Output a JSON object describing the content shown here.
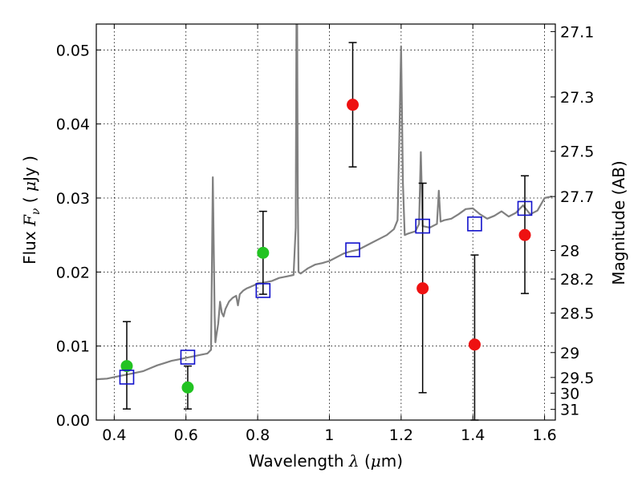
{
  "chart_data": {
    "type": "scatter",
    "xlabel": {
      "prefix": "Wavelength",
      "symbol": "λ",
      "unit_open": "(",
      "unit_mu": "μ",
      "unit_rest": "m)"
    },
    "ylabel": {
      "prefix": "Flux",
      "symbol": "F",
      "sub": "ν",
      "unit_open": "(",
      "unit_mu": "μ",
      "unit_rest": "Jy )"
    },
    "y2label": "Magnitude (AB)",
    "xlim": [
      0.35,
      1.63
    ],
    "ylim": [
      0.0,
      0.0535
    ],
    "x_ticks": [
      "0.4",
      "0.6",
      "0.8",
      "1",
      "1.2",
      "1.4",
      "1.6"
    ],
    "y_ticks": [
      "0.00",
      "0.01",
      "0.02",
      "0.03",
      "0.04",
      "0.05"
    ],
    "y2_ticks": [
      "27.1",
      "27.3",
      "27.5",
      "27.7",
      "28",
      "28.2",
      "28.5",
      "29",
      "29.5",
      "30",
      "31"
    ],
    "grid": true,
    "series": [
      {
        "marker": "circle",
        "color": "#22c322",
        "points": [
          {
            "x": 0.435,
            "y": 0.0073,
            "err_low": 0.0015,
            "err_high": 0.0133
          },
          {
            "x": 0.605,
            "y": 0.0044,
            "err_low": 0.0015,
            "err_high": 0.0073
          },
          {
            "x": 0.815,
            "y": 0.0226,
            "err_low": 0.017,
            "err_high": 0.0282
          }
        ]
      },
      {
        "marker": "circle",
        "color": "#ee1111",
        "points": [
          {
            "x": 1.065,
            "y": 0.0426,
            "err_low": 0.0342,
            "err_high": 0.051
          },
          {
            "x": 1.26,
            "y": 0.0178,
            "err_low": 0.0037,
            "err_high": 0.032
          },
          {
            "x": 1.405,
            "y": 0.0102,
            "err_low": 0.0,
            "err_high": 0.0223
          },
          {
            "x": 1.545,
            "y": 0.025,
            "err_low": 0.0171,
            "err_high": 0.033
          }
        ]
      },
      {
        "marker": "open-square",
        "color": "#1111cc",
        "points": [
          {
            "x": 0.435,
            "y": 0.0058
          },
          {
            "x": 0.605,
            "y": 0.0085
          },
          {
            "x": 0.815,
            "y": 0.0175
          },
          {
            "x": 1.065,
            "y": 0.023
          },
          {
            "x": 1.26,
            "y": 0.0262
          },
          {
            "x": 1.405,
            "y": 0.0265
          },
          {
            "x": 1.545,
            "y": 0.0286
          }
        ]
      },
      {
        "type": "line",
        "color": "#808080",
        "x": [
          0.35,
          0.38,
          0.4,
          0.42,
          0.44,
          0.46,
          0.48,
          0.5,
          0.52,
          0.54,
          0.56,
          0.58,
          0.6,
          0.62,
          0.64,
          0.66,
          0.67,
          0.675,
          0.68,
          0.682,
          0.685,
          0.69,
          0.695,
          0.7,
          0.705,
          0.71,
          0.72,
          0.73,
          0.74,
          0.745,
          0.75,
          0.76,
          0.77,
          0.78,
          0.79,
          0.8,
          0.82,
          0.84,
          0.86,
          0.88,
          0.9,
          0.906,
          0.908,
          0.91,
          0.912,
          0.914,
          0.92,
          0.94,
          0.96,
          0.98,
          1.0,
          1.02,
          1.04,
          1.06,
          1.08,
          1.1,
          1.12,
          1.14,
          1.16,
          1.18,
          1.19,
          1.195,
          1.2,
          1.205,
          1.21,
          1.22,
          1.24,
          1.25,
          1.255,
          1.26,
          1.28,
          1.3,
          1.305,
          1.31,
          1.32,
          1.34,
          1.36,
          1.38,
          1.4,
          1.42,
          1.44,
          1.46,
          1.48,
          1.5,
          1.52,
          1.54,
          1.56,
          1.58,
          1.6,
          1.62
        ],
        "y": [
          0.0055,
          0.0056,
          0.0058,
          0.006,
          0.0062,
          0.0064,
          0.0066,
          0.007,
          0.0074,
          0.0077,
          0.008,
          0.0082,
          0.0084,
          0.0086,
          0.0088,
          0.009,
          0.0095,
          0.0328,
          0.014,
          0.0105,
          0.0115,
          0.013,
          0.016,
          0.0145,
          0.014,
          0.015,
          0.016,
          0.0165,
          0.0168,
          0.0155,
          0.017,
          0.0175,
          0.0178,
          0.018,
          0.0182,
          0.0185,
          0.0186,
          0.0188,
          0.0192,
          0.0194,
          0.0196,
          0.026,
          0.0535,
          0.0535,
          0.03,
          0.02,
          0.0198,
          0.0205,
          0.021,
          0.0212,
          0.0215,
          0.022,
          0.0225,
          0.0228,
          0.023,
          0.0235,
          0.024,
          0.0245,
          0.025,
          0.0258,
          0.027,
          0.038,
          0.0505,
          0.032,
          0.025,
          0.0252,
          0.0255,
          0.0265,
          0.0362,
          0.0262,
          0.026,
          0.0265,
          0.031,
          0.0268,
          0.027,
          0.0272,
          0.0278,
          0.0285,
          0.0286,
          0.0278,
          0.0272,
          0.0276,
          0.0282,
          0.0275,
          0.028,
          0.029,
          0.0278,
          0.0283,
          0.03,
          0.0302
        ]
      }
    ]
  }
}
